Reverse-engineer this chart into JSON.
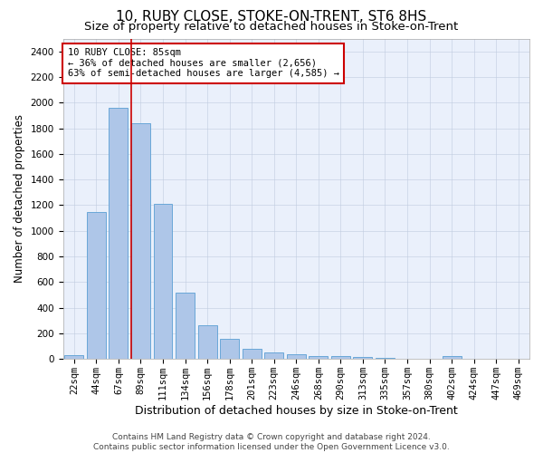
{
  "title": "10, RUBY CLOSE, STOKE-ON-TRENT, ST6 8HS",
  "subtitle": "Size of property relative to detached houses in Stoke-on-Trent",
  "xlabel": "Distribution of detached houses by size in Stoke-on-Trent",
  "ylabel": "Number of detached properties",
  "categories": [
    "22sqm",
    "44sqm",
    "67sqm",
    "89sqm",
    "111sqm",
    "134sqm",
    "156sqm",
    "178sqm",
    "201sqm",
    "223sqm",
    "246sqm",
    "268sqm",
    "290sqm",
    "313sqm",
    "335sqm",
    "357sqm",
    "380sqm",
    "402sqm",
    "424sqm",
    "447sqm",
    "469sqm"
  ],
  "values": [
    30,
    1150,
    1960,
    1840,
    1210,
    515,
    265,
    155,
    80,
    50,
    40,
    20,
    20,
    15,
    10,
    5,
    5,
    20,
    0,
    0,
    0
  ],
  "bar_color": "#aec6e8",
  "bar_edge_color": "#5a9fd4",
  "vline_x_index": 3,
  "vline_color": "#cc0000",
  "annotation_text": "10 RUBY CLOSE: 85sqm\n← 36% of detached houses are smaller (2,656)\n63% of semi-detached houses are larger (4,585) →",
  "annotation_box_color": "#ffffff",
  "annotation_box_edge": "#cc0000",
  "ylim": [
    0,
    2500
  ],
  "yticks": [
    0,
    200,
    400,
    600,
    800,
    1000,
    1200,
    1400,
    1600,
    1800,
    2000,
    2200,
    2400
  ],
  "plot_bg_color": "#eaf0fb",
  "footer_line1": "Contains HM Land Registry data © Crown copyright and database right 2024.",
  "footer_line2": "Contains public sector information licensed under the Open Government Licence v3.0.",
  "title_fontsize": 11,
  "subtitle_fontsize": 9.5,
  "xlabel_fontsize": 9,
  "ylabel_fontsize": 8.5,
  "tick_fontsize": 7.5,
  "annotation_fontsize": 7.5,
  "footer_fontsize": 6.5
}
